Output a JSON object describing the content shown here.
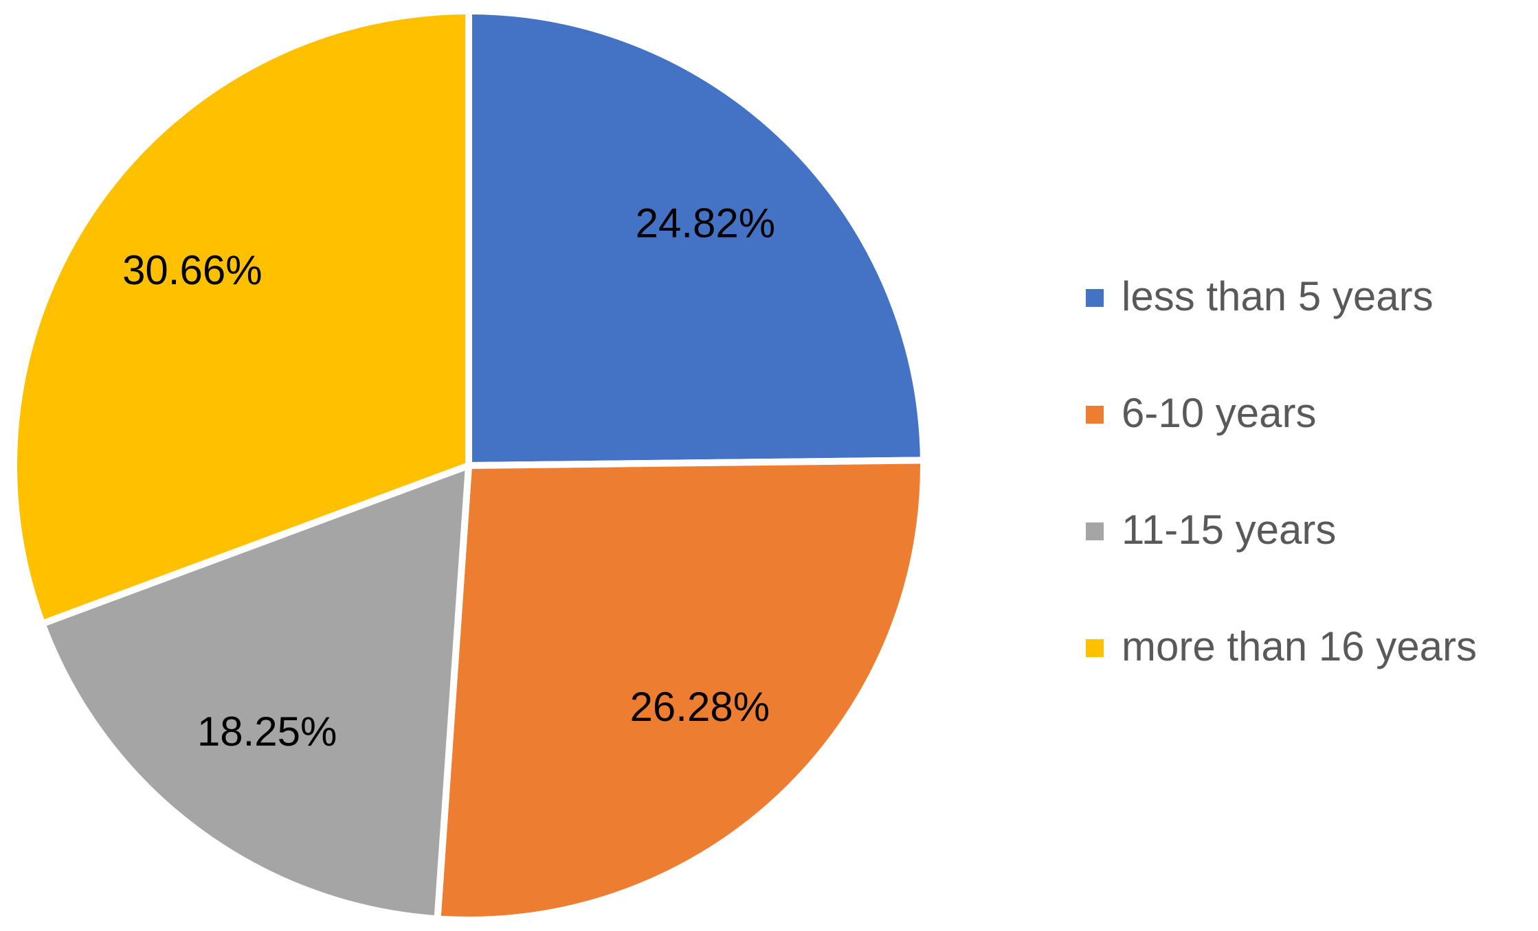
{
  "chart_data": {
    "type": "pie",
    "categories": [
      "less than 5 years",
      "6-10 years",
      "11-15 years",
      "more than 16 years"
    ],
    "values": [
      24.82,
      26.28,
      18.25,
      30.66
    ],
    "value_labels": [
      "24.82%",
      "26.28%",
      "18.25%",
      "30.66%"
    ],
    "colors": [
      "#4472c4",
      "#ed7d31",
      "#a5a5a5",
      "#ffc000"
    ],
    "legend": "right"
  }
}
